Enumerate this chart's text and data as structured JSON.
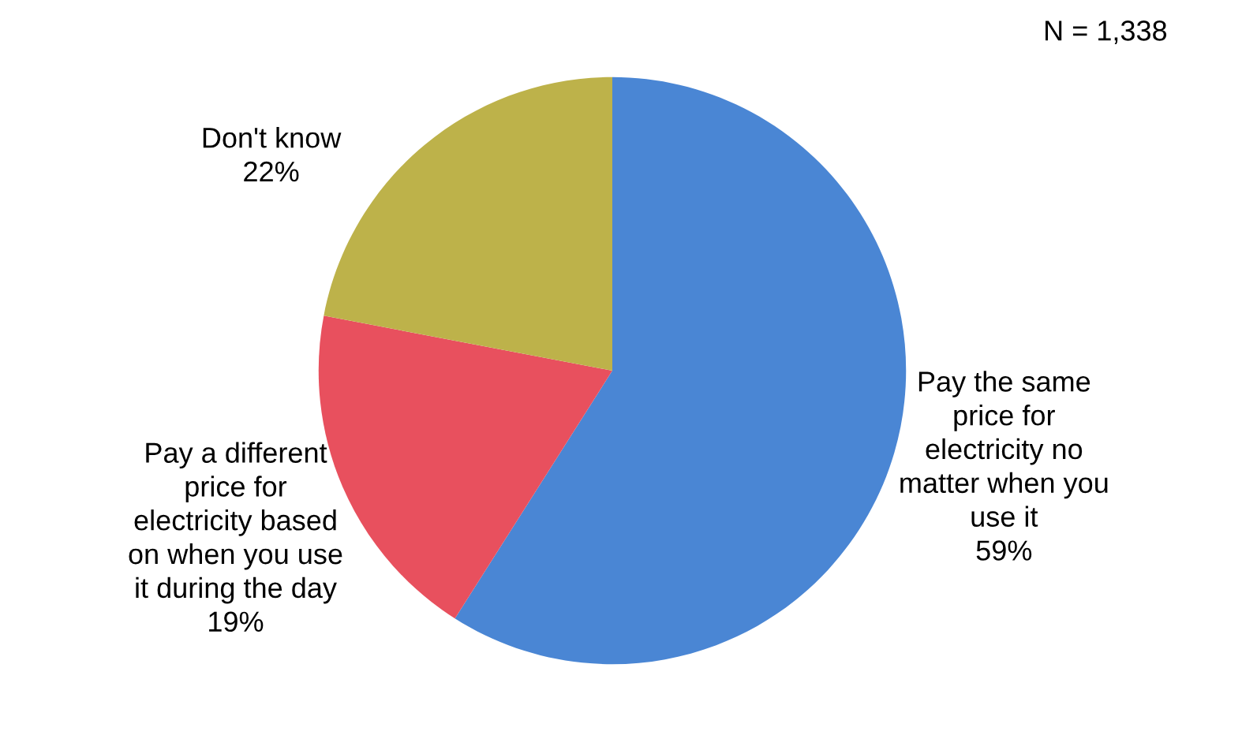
{
  "chart_data": {
    "type": "pie",
    "categories": [
      "Pay the same\nprice for\nelectricity no\nmatter when you\nuse it",
      "Pay a different\nprice for\nelectricity based\non when you use\nit during the day",
      "Don't know"
    ],
    "values": [
      59,
      19,
      22
    ],
    "value_labels": [
      "59%",
      "19%",
      "22%"
    ],
    "colors": [
      "#4a86d4",
      "#e8505e",
      "#bdb24a"
    ],
    "annotations": [
      "N = 1,338"
    ],
    "legend": false
  }
}
